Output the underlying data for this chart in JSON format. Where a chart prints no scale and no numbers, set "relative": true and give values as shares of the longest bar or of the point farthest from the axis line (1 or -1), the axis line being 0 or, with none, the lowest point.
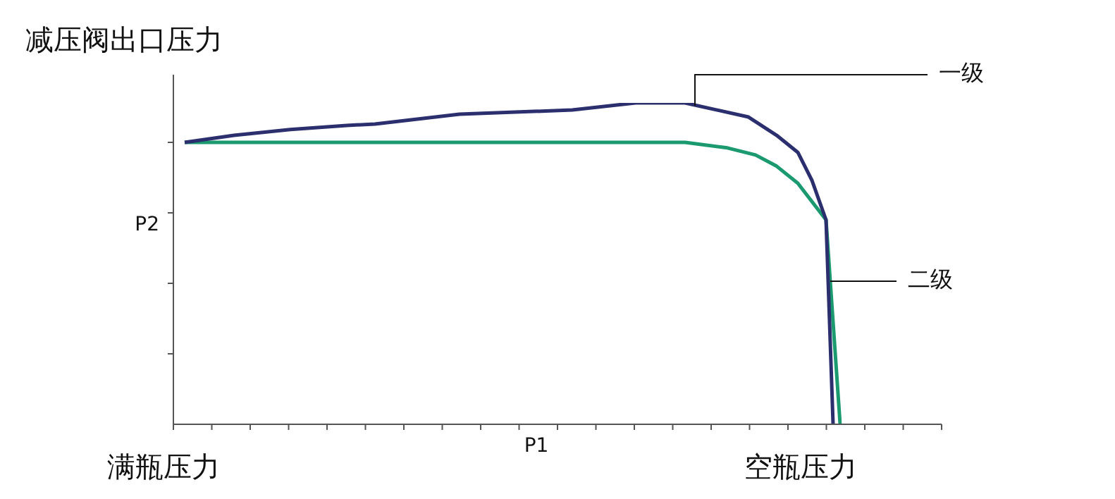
{
  "chart_data": {
    "type": "line",
    "relative": true,
    "ylabel": "减压阀出口压力",
    "y2label": "P2",
    "xlabel": "P1",
    "annotations": [
      "满瓶压力",
      "空瓶压力"
    ],
    "categories": [
      null,
      null,
      null,
      null,
      null,
      null,
      null,
      null,
      null,
      null,
      null,
      null,
      null,
      null,
      null,
      null,
      null,
      null,
      null,
      null,
      null,
      null,
      null,
      null,
      null,
      null,
      null,
      null,
      null,
      null,
      null,
      null,
      null,
      null,
      null,
      null,
      null,
      null,
      null,
      null,
      null,
      null,
      null,
      null,
      null,
      null,
      null,
      null,
      null,
      null,
      null,
      null,
      null,
      null,
      null,
      null,
      null,
      null,
      null,
      null,
      null,
      null,
      null,
      null,
      null,
      null,
      null,
      null,
      null,
      null,
      null,
      null,
      null,
      null,
      null,
      null,
      null,
      null,
      null,
      null,
      null,
      null,
      null,
      null,
      null,
      null,
      null,
      null,
      null,
      null,
      null,
      null,
      null,
      null
    ],
    "series": [
      {
        "name": "一级",
        "color": "#2b2f6e",
        "values": [
          0.877,
          null,
          null,
          null,
          null,
          null,
          null,
          0.899,
          null,
          null,
          null,
          null,
          null,
          null,
          null,
          0.917,
          null,
          null,
          null,
          null,
          null,
          null,
          null,
          0.93,
          null,
          null,
          null,
          0.934,
          null,
          null,
          null,
          null,
          null,
          null,
          null,
          null,
          null,
          null,
          null,
          0.965,
          null,
          null,
          null,
          null,
          null,
          null,
          null,
          null,
          null,
          null,
          null,
          null,
          null,
          null,
          null,
          0.978,
          null,
          null,
          null,
          null,
          null,
          null,
          null,
          null,
          1,
          null,
          null,
          null,
          null,
          null,
          null,
          1,
          null,
          null,
          null,
          null,
          null,
          null,
          null,
          null,
          0.956,
          null,
          null,
          null,
          0.899,
          null,
          null,
          0.846,
          null,
          0.759,
          null,
          0.636,
          0,
          null
        ]
      },
      {
        "name": "二级",
        "color": "#1a9a6e",
        "values": [
          0.877,
          null,
          null,
          null,
          null,
          null,
          null,
          null,
          null,
          null,
          null,
          null,
          null,
          null,
          null,
          null,
          null,
          null,
          null,
          null,
          null,
          null,
          null,
          null,
          null,
          null,
          null,
          null,
          null,
          null,
          null,
          null,
          null,
          null,
          null,
          null,
          null,
          null,
          null,
          null,
          null,
          null,
          null,
          null,
          null,
          null,
          null,
          null,
          null,
          null,
          null,
          null,
          null,
          null,
          null,
          null,
          null,
          null,
          null,
          null,
          null,
          null,
          null,
          null,
          null,
          null,
          null,
          null,
          null,
          null,
          null,
          0.877,
          null,
          null,
          null,
          null,
          null,
          0.86,
          null,
          null,
          null,
          0.838,
          null,
          null,
          0.803,
          null,
          null,
          0.75,
          null,
          0.693,
          null,
          0.636,
          null,
          0
        ]
      }
    ]
  }
}
